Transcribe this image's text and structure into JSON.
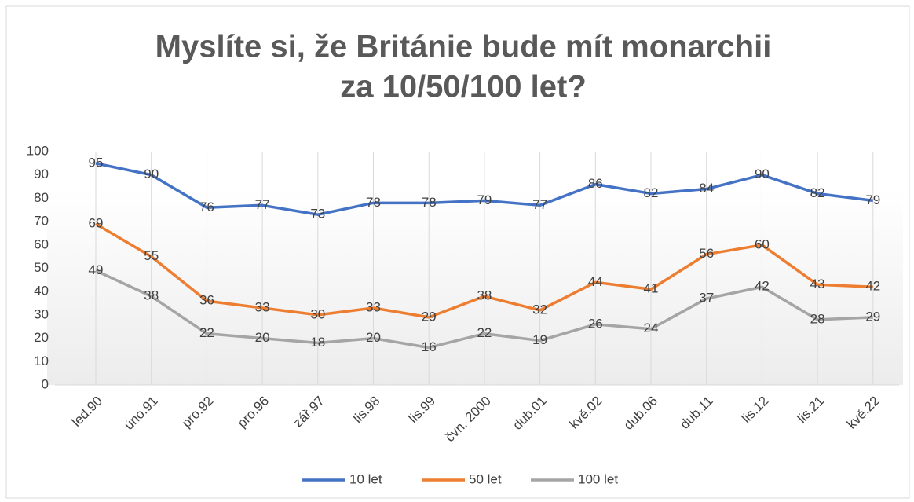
{
  "chart_data": {
    "type": "line",
    "title": [
      "Myslíte si, že Británie bude mít monarchii",
      "za 10/50/100 let?"
    ],
    "categories": [
      "led.90",
      "úno.91",
      "pro.92",
      "pro.96",
      "zář.97",
      "lis.98",
      "lis.99",
      "čvn. 2000",
      "dub.01",
      "kvě.02",
      "dub.06",
      "dub.11",
      "lis.12",
      "lis.21",
      "kvě.22"
    ],
    "series": [
      {
        "name": "10 let",
        "color": "#4472c4",
        "values": [
          95,
          90,
          76,
          77,
          73,
          78,
          78,
          79,
          77,
          86,
          82,
          84,
          90,
          82,
          79
        ]
      },
      {
        "name": "50 let",
        "color": "#ed7d31",
        "values": [
          69,
          55,
          36,
          33,
          30,
          33,
          29,
          38,
          32,
          44,
          41,
          56,
          60,
          43,
          42
        ]
      },
      {
        "name": "100 let",
        "color": "#a5a5a5",
        "values": [
          49,
          38,
          22,
          20,
          18,
          20,
          16,
          22,
          19,
          26,
          24,
          37,
          42,
          28,
          29
        ]
      }
    ],
    "ylim": [
      0,
      100
    ],
    "yticks": [
      0,
      10,
      20,
      30,
      40,
      50,
      60,
      70,
      80,
      90,
      100
    ],
    "grid": true,
    "legend": "bottom"
  }
}
